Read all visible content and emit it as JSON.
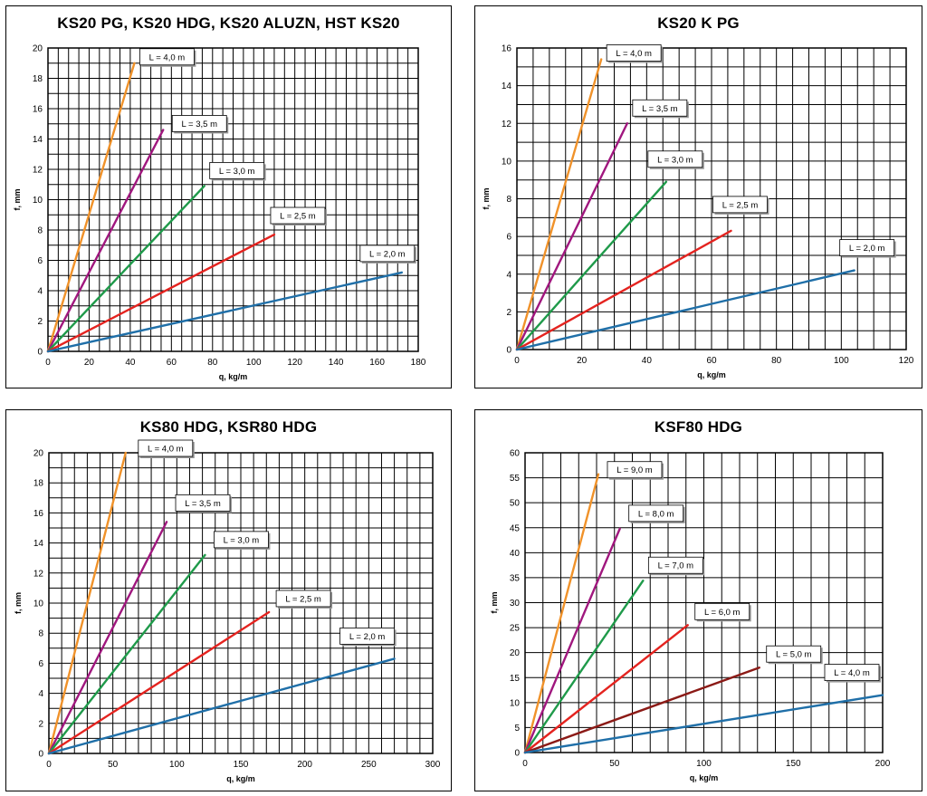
{
  "chart_data": [
    {
      "type": "line",
      "title": "KS20 PG, KS20 HDG, KS20 ALUZN, HST KS20",
      "xlabel": "q, kg/m",
      "ylabel": "f, mm",
      "xlim": [
        0,
        180
      ],
      "ylim": [
        0,
        20
      ],
      "xticks": [
        0,
        20,
        40,
        60,
        80,
        100,
        120,
        140,
        160,
        180
      ],
      "yticks": [
        0,
        2,
        4,
        6,
        8,
        10,
        12,
        14,
        16,
        18,
        20
      ],
      "x_minor_step": 5,
      "y_minor_step": 1,
      "series": [
        {
          "name": "L = 4,0 m",
          "color": "#f0922a",
          "x": [
            0,
            42
          ],
          "y": [
            0,
            19.0
          ]
        },
        {
          "name": "L = 3,5 m",
          "color": "#a0177e",
          "x": [
            0,
            56
          ],
          "y": [
            0,
            14.6
          ]
        },
        {
          "name": "L = 3,0 m",
          "color": "#1f9a4a",
          "x": [
            0,
            76
          ],
          "y": [
            0,
            10.9
          ]
        },
        {
          "name": "L = 2,5 m",
          "color": "#e4231f",
          "x": [
            0,
            110
          ],
          "y": [
            0,
            7.7
          ]
        },
        {
          "name": "L = 2,0 m",
          "color": "#1f6fa8",
          "x": [
            0,
            172
          ],
          "y": [
            0,
            5.2
          ]
        }
      ]
    },
    {
      "type": "line",
      "title": "KS20 K PG",
      "xlabel": "q, kg/m",
      "ylabel": "f, mm",
      "xlim": [
        0,
        120
      ],
      "ylim": [
        0,
        16
      ],
      "xticks": [
        0,
        20,
        40,
        60,
        80,
        100,
        120
      ],
      "yticks": [
        0,
        2,
        4,
        6,
        8,
        10,
        12,
        14,
        16
      ],
      "x_minor_step": 5,
      "y_minor_step": 1,
      "series": [
        {
          "name": "L = 4,0 m",
          "color": "#f0922a",
          "x": [
            0,
            26
          ],
          "y": [
            0,
            15.4
          ]
        },
        {
          "name": "L = 3,5 m",
          "color": "#a0177e",
          "x": [
            0,
            34
          ],
          "y": [
            0,
            12.0
          ]
        },
        {
          "name": "L = 3,0 m",
          "color": "#1f9a4a",
          "x": [
            0,
            46
          ],
          "y": [
            0,
            8.9
          ]
        },
        {
          "name": "L = 2,5 m",
          "color": "#e4231f",
          "x": [
            0,
            66
          ],
          "y": [
            0,
            6.3
          ]
        },
        {
          "name": "L = 2,0 m",
          "color": "#1f6fa8",
          "x": [
            0,
            104
          ],
          "y": [
            0,
            4.2
          ]
        }
      ]
    },
    {
      "type": "line",
      "title": "KS80 HDG, KSR80 HDG",
      "xlabel": "q, kg/m",
      "ylabel": "f, mm",
      "xlim": [
        0,
        300
      ],
      "ylim": [
        0,
        20
      ],
      "xticks": [
        0,
        50,
        100,
        150,
        200,
        250,
        300
      ],
      "yticks": [
        0,
        2,
        4,
        6,
        8,
        10,
        12,
        14,
        16,
        18,
        20
      ],
      "x_minor_step": 10,
      "y_minor_step": 1,
      "series": [
        {
          "name": "L = 4,0 m",
          "color": "#f0922a",
          "x": [
            0,
            60
          ],
          "y": [
            0,
            20.0
          ]
        },
        {
          "name": "L = 3,5 m",
          "color": "#a0177e",
          "x": [
            0,
            92
          ],
          "y": [
            0,
            15.4
          ]
        },
        {
          "name": "L = 3,0 m",
          "color": "#1f9a4a",
          "x": [
            0,
            122
          ],
          "y": [
            0,
            13.2
          ]
        },
        {
          "name": "L = 2,5 m",
          "color": "#e4231f",
          "x": [
            0,
            172
          ],
          "y": [
            0,
            9.4
          ]
        },
        {
          "name": "L = 2,0 m",
          "color": "#1f6fa8",
          "x": [
            0,
            270
          ],
          "y": [
            0,
            6.3
          ]
        }
      ]
    },
    {
      "type": "line",
      "title": "KSF80 HDG",
      "xlabel": "q, kg/m",
      "ylabel": "f, mm",
      "xlim": [
        0,
        200
      ],
      "ylim": [
        0,
        60
      ],
      "xticks": [
        0,
        50,
        100,
        150,
        200
      ],
      "yticks": [
        0,
        5,
        10,
        15,
        20,
        25,
        30,
        35,
        40,
        45,
        50,
        55,
        60
      ],
      "x_minor_step": 10,
      "y_minor_step": 5,
      "series": [
        {
          "name": "L = 9,0 m",
          "color": "#f0922a",
          "x": [
            0,
            41
          ],
          "y": [
            0,
            55.7
          ]
        },
        {
          "name": "L = 8,0 m",
          "color": "#a0177e",
          "x": [
            0,
            53
          ],
          "y": [
            0,
            44.8
          ]
        },
        {
          "name": "L = 7,0 m",
          "color": "#1f9a4a",
          "x": [
            0,
            66
          ],
          "y": [
            0,
            34.4
          ]
        },
        {
          "name": "L = 6,0 m",
          "color": "#e4231f",
          "x": [
            0,
            91
          ],
          "y": [
            0,
            25.5
          ]
        },
        {
          "name": "L = 5,0 m",
          "color": "#8b1a16",
          "x": [
            0,
            131
          ],
          "y": [
            0,
            17.0
          ]
        },
        {
          "name": "L = 4,0 m",
          "color": "#1f6fa8",
          "x": [
            0,
            200
          ],
          "y": [
            0,
            11.5
          ]
        }
      ]
    }
  ]
}
